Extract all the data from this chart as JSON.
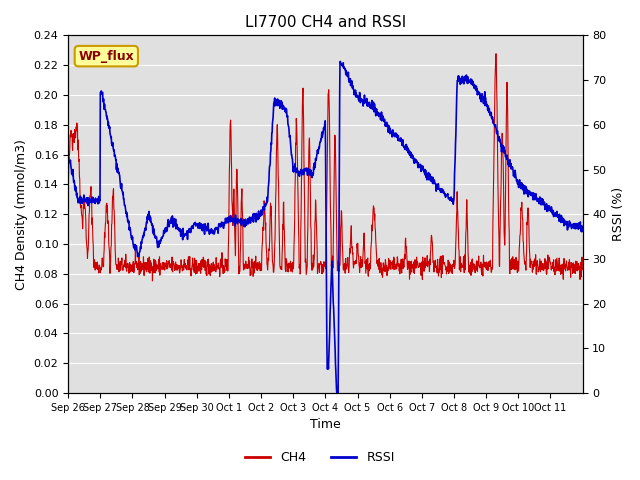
{
  "title": "LI7700 CH4 and RSSI",
  "xlabel": "Time",
  "ylabel_left": "CH4 Density (mmol/m3)",
  "ylabel_right": "RSSI (%)",
  "annotation": "WP_flux",
  "x_tick_labels": [
    "Sep 26",
    "Sep 27",
    "Sep 28",
    "Sep 29",
    "Sep 30",
    "Oct 1",
    "Oct 2",
    "Oct 3",
    "Oct 4",
    "Oct 5",
    "Oct 6",
    "Oct 7",
    "Oct 8",
    "Oct 9",
    "Oct 10",
    "Oct 11"
  ],
  "ylim_left": [
    0.0,
    0.24
  ],
  "ylim_right": [
    0,
    80
  ],
  "yticks_left": [
    0.0,
    0.02,
    0.04,
    0.06,
    0.08,
    0.1,
    0.12,
    0.14,
    0.16,
    0.18,
    0.2,
    0.22,
    0.24
  ],
  "yticks_right": [
    0,
    10,
    20,
    30,
    40,
    50,
    60,
    70,
    80
  ],
  "ch4_color": "#cc0000",
  "rssi_color": "#0000cc",
  "bg_color": "#e0e0e0",
  "annotation_bg": "#ffff99",
  "annotation_border": "#cc9900",
  "n_days": 16,
  "n_pts": 1600
}
